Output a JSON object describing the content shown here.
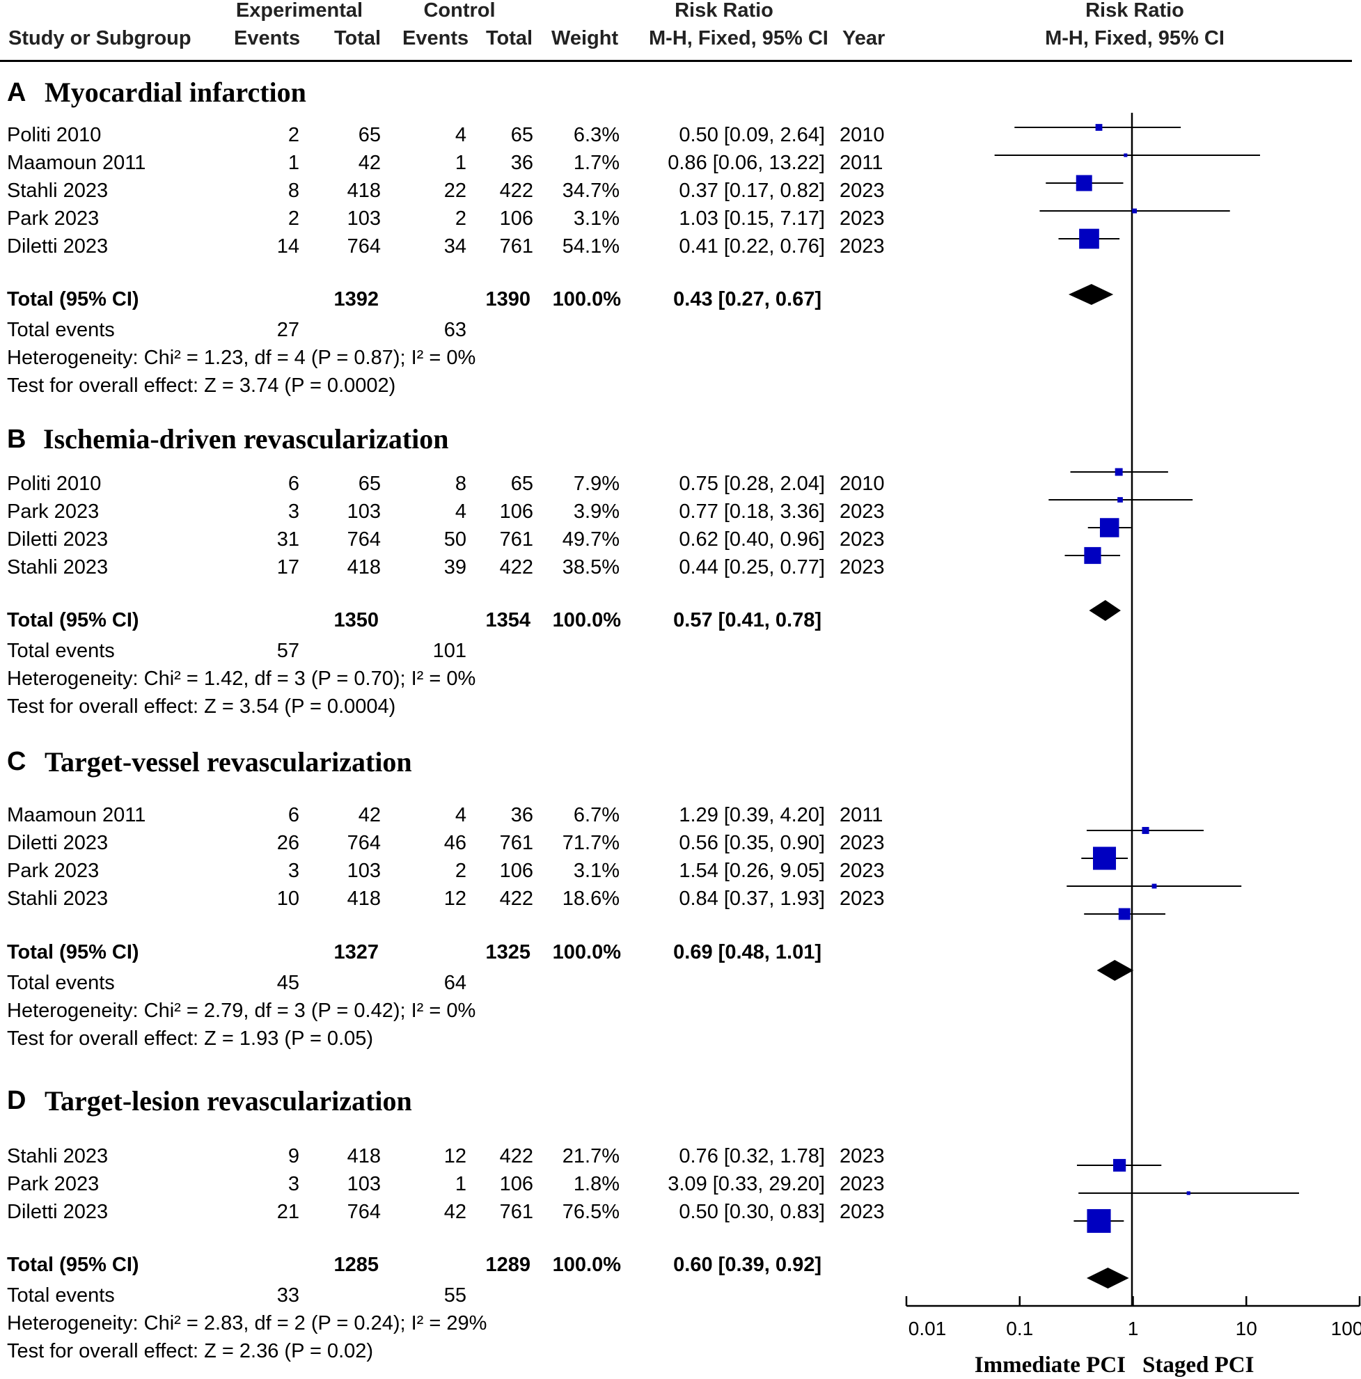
{
  "header": {
    "group_experimental": "Experimental",
    "group_control": "Control",
    "group_risk_ratio": "Risk Ratio",
    "group_risk_ratio_plot": "Risk Ratio",
    "col_study": "Study or Subgroup",
    "col_exp_events": "Events",
    "col_exp_total": "Total",
    "col_ctl_events": "Events",
    "col_ctl_total": "Total",
    "col_weight": "Weight",
    "col_rr": "M-H, Fixed, 95% CI",
    "col_year": "Year",
    "col_plot": "M-H, Fixed, 95% CI"
  },
  "sections": [
    {
      "letter": "A",
      "title": "Myocardial infarction",
      "studies": [
        {
          "study": "Politi 2010",
          "exp_events": "2",
          "exp_total": "65",
          "ctl_events": "4",
          "ctl_total": "65",
          "weight": "6.3%",
          "rr": "0.50 [0.09, 2.64]",
          "year": "2010"
        },
        {
          "study": "Maamoun 2011",
          "exp_events": "1",
          "exp_total": "42",
          "ctl_events": "1",
          "ctl_total": "36",
          "weight": "1.7%",
          "rr": "0.86 [0.06, 13.22]",
          "year": "2011"
        },
        {
          "study": "Stahli 2023",
          "exp_events": "8",
          "exp_total": "418",
          "ctl_events": "22",
          "ctl_total": "422",
          "weight": "34.7%",
          "rr": "0.37 [0.17, 0.82]",
          "year": "2023"
        },
        {
          "study": "Park 2023",
          "exp_events": "2",
          "exp_total": "103",
          "ctl_events": "2",
          "ctl_total": "106",
          "weight": "3.1%",
          "rr": "1.03 [0.15, 7.17]",
          "year": "2023"
        },
        {
          "study": "Diletti 2023",
          "exp_events": "14",
          "exp_total": "764",
          "ctl_events": "34",
          "ctl_total": "761",
          "weight": "54.1%",
          "rr": "0.41 [0.22, 0.76]",
          "year": "2023"
        }
      ],
      "total": {
        "label": "Total (95% CI)",
        "exp_total": "1392",
        "ctl_total": "1390",
        "weight": "100.0%",
        "rr": "0.43 [0.27, 0.67]"
      },
      "events": {
        "label": "Total events",
        "exp": "27",
        "ctl": "63"
      },
      "heterogeneity": "Heterogeneity: Chi² = 1.23, df = 4 (P = 0.87); I² = 0%",
      "overall": "Test for overall effect: Z = 3.74 (P = 0.0002)"
    },
    {
      "letter": "B",
      "title": "Ischemia-driven revascularization",
      "studies": [
        {
          "study": "Politi 2010",
          "exp_events": "6",
          "exp_total": "65",
          "ctl_events": "8",
          "ctl_total": "65",
          "weight": "7.9%",
          "rr": "0.75 [0.28, 2.04]",
          "year": "2010"
        },
        {
          "study": "Park 2023",
          "exp_events": "3",
          "exp_total": "103",
          "ctl_events": "4",
          "ctl_total": "106",
          "weight": "3.9%",
          "rr": "0.77 [0.18, 3.36]",
          "year": "2023"
        },
        {
          "study": "Diletti 2023",
          "exp_events": "31",
          "exp_total": "764",
          "ctl_events": "50",
          "ctl_total": "761",
          "weight": "49.7%",
          "rr": "0.62 [0.40, 0.96]",
          "year": "2023"
        },
        {
          "study": "Stahli 2023",
          "exp_events": "17",
          "exp_total": "418",
          "ctl_events": "39",
          "ctl_total": "422",
          "weight": "38.5%",
          "rr": "0.44 [0.25, 0.77]",
          "year": "2023"
        }
      ],
      "total": {
        "label": "Total (95% CI)",
        "exp_total": "1350",
        "ctl_total": "1354",
        "weight": "100.0%",
        "rr": "0.57 [0.41, 0.78]"
      },
      "events": {
        "label": "Total events",
        "exp": "57",
        "ctl": "101"
      },
      "heterogeneity": "Heterogeneity: Chi² = 1.42, df = 3 (P = 0.70); I² = 0%",
      "overall": "Test for overall effect: Z = 3.54 (P = 0.0004)"
    },
    {
      "letter": "C",
      "title": "Target-vessel revascularization",
      "studies": [
        {
          "study": "Maamoun 2011",
          "exp_events": "6",
          "exp_total": "42",
          "ctl_events": "4",
          "ctl_total": "36",
          "weight": "6.7%",
          "rr": "1.29 [0.39, 4.20]",
          "year": "2011"
        },
        {
          "study": "Diletti 2023",
          "exp_events": "26",
          "exp_total": "764",
          "ctl_events": "46",
          "ctl_total": "761",
          "weight": "71.7%",
          "rr": "0.56 [0.35, 0.90]",
          "year": "2023"
        },
        {
          "study": "Park 2023",
          "exp_events": "3",
          "exp_total": "103",
          "ctl_events": "2",
          "ctl_total": "106",
          "weight": "3.1%",
          "rr": "1.54 [0.26, 9.05]",
          "year": "2023"
        },
        {
          "study": "Stahli 2023",
          "exp_events": "10",
          "exp_total": "418",
          "ctl_events": "12",
          "ctl_total": "422",
          "weight": "18.6%",
          "rr": "0.84 [0.37, 1.93]",
          "year": "2023"
        }
      ],
      "total": {
        "label": "Total (95% CI)",
        "exp_total": "1327",
        "ctl_total": "1325",
        "weight": "100.0%",
        "rr": "0.69 [0.48, 1.01]"
      },
      "events": {
        "label": "Total events",
        "exp": "45",
        "ctl": "64"
      },
      "heterogeneity": "Heterogeneity: Chi² = 2.79, df = 3 (P = 0.42); I² = 0%",
      "overall": "Test for overall effect: Z = 1.93 (P = 0.05)"
    },
    {
      "letter": "D",
      "title": "Target-lesion revascularization",
      "studies": [
        {
          "study": "Stahli 2023",
          "exp_events": "9",
          "exp_total": "418",
          "ctl_events": "12",
          "ctl_total": "422",
          "weight": "21.7%",
          "rr": "0.76 [0.32, 1.78]",
          "year": "2023"
        },
        {
          "study": "Park 2023",
          "exp_events": "3",
          "exp_total": "103",
          "ctl_events": "1",
          "ctl_total": "106",
          "weight": "1.8%",
          "rr": "3.09 [0.33, 29.20]",
          "year": "2023"
        },
        {
          "study": "Diletti 2023",
          "exp_events": "21",
          "exp_total": "764",
          "ctl_events": "42",
          "ctl_total": "761",
          "weight": "76.5%",
          "rr": "0.50 [0.30, 0.83]",
          "year": "2023"
        }
      ],
      "total": {
        "label": "Total (95% CI)",
        "exp_total": "1285",
        "ctl_total": "1289",
        "weight": "100.0%",
        "rr": "0.60 [0.39, 0.92]"
      },
      "events": {
        "label": "Total events",
        "exp": "33",
        "ctl": "55"
      },
      "heterogeneity": "Heterogeneity: Chi² = 2.83, df = 2 (P = 0.24); I² = 29%",
      "overall": "Test for overall effect: Z = 2.36 (P = 0.02)"
    }
  ],
  "chart_data": {
    "type": "forest",
    "scale": "log",
    "xlim": [
      0.01,
      100
    ],
    "ticks": [
      0.01,
      0.1,
      1,
      10,
      100
    ],
    "tick_labels": [
      "0.01",
      "0.1",
      "1",
      "10",
      "100"
    ],
    "reference": 1,
    "favours_left": "Immediate PCI",
    "favours_right": "Staged PCI",
    "series_colors": {
      "study": "#0000c0",
      "summary": "#000000"
    },
    "panels": [
      {
        "letter": "A",
        "studies": [
          {
            "rr": 0.5,
            "lo": 0.09,
            "hi": 2.64,
            "weight": 6.3
          },
          {
            "rr": 0.86,
            "lo": 0.06,
            "hi": 13.22,
            "weight": 1.7
          },
          {
            "rr": 0.37,
            "lo": 0.17,
            "hi": 0.82,
            "weight": 34.7
          },
          {
            "rr": 1.03,
            "lo": 0.15,
            "hi": 7.17,
            "weight": 3.1
          },
          {
            "rr": 0.41,
            "lo": 0.22,
            "hi": 0.76,
            "weight": 54.1
          }
        ],
        "total": {
          "rr": 0.43,
          "lo": 0.27,
          "hi": 0.67
        }
      },
      {
        "letter": "B",
        "studies": [
          {
            "rr": 0.75,
            "lo": 0.28,
            "hi": 2.04,
            "weight": 7.9
          },
          {
            "rr": 0.77,
            "lo": 0.18,
            "hi": 3.36,
            "weight": 3.9
          },
          {
            "rr": 0.62,
            "lo": 0.4,
            "hi": 0.96,
            "weight": 49.7
          },
          {
            "rr": 0.44,
            "lo": 0.25,
            "hi": 0.77,
            "weight": 38.5
          }
        ],
        "total": {
          "rr": 0.57,
          "lo": 0.41,
          "hi": 0.78
        }
      },
      {
        "letter": "C",
        "studies": [
          {
            "rr": 1.29,
            "lo": 0.39,
            "hi": 4.2,
            "weight": 6.7
          },
          {
            "rr": 0.56,
            "lo": 0.35,
            "hi": 0.9,
            "weight": 71.7
          },
          {
            "rr": 1.54,
            "lo": 0.26,
            "hi": 9.05,
            "weight": 3.1
          },
          {
            "rr": 0.84,
            "lo": 0.37,
            "hi": 1.93,
            "weight": 18.6
          }
        ],
        "total": {
          "rr": 0.69,
          "lo": 0.48,
          "hi": 1.01
        }
      },
      {
        "letter": "D",
        "studies": [
          {
            "rr": 0.76,
            "lo": 0.32,
            "hi": 1.78,
            "weight": 21.7
          },
          {
            "rr": 3.09,
            "lo": 0.33,
            "hi": 29.2,
            "weight": 1.8
          },
          {
            "rr": 0.5,
            "lo": 0.3,
            "hi": 0.83,
            "weight": 76.5
          }
        ],
        "total": {
          "rr": 0.6,
          "lo": 0.39,
          "hi": 0.92
        }
      }
    ]
  }
}
